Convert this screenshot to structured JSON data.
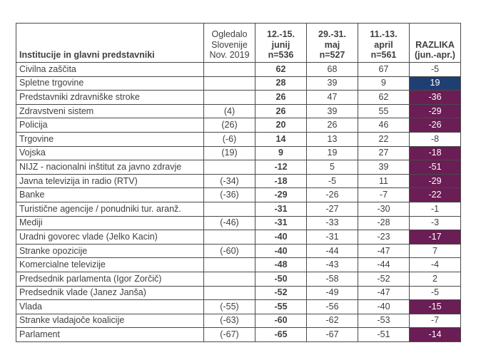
{
  "header": {
    "institution": "Institucije in glavni predstavniki",
    "reference": [
      "Ogledalo",
      "Slovenije",
      "Nov. 2019"
    ],
    "col_june": [
      "12.-15.",
      "junij",
      "n=536"
    ],
    "col_may": [
      "29.-31.",
      "maj",
      "n=527"
    ],
    "col_april": [
      "11.-13.",
      "april",
      "n=561"
    ],
    "col_diff": [
      "RAZLIKA",
      "(jun.-apr.)"
    ]
  },
  "colors": {
    "positive_highlight": "#1f3f73",
    "negative_highlight": "#6b1d55"
  },
  "rows": [
    {
      "name": "Civilna zaščita",
      "ref": "",
      "jun": "62",
      "maj": "68",
      "apr": "67",
      "diff": "-5",
      "hl": ""
    },
    {
      "name": "Spletne trgovine",
      "ref": "",
      "jun": "28",
      "maj": "39",
      "apr": "9",
      "diff": "19",
      "hl": "pos"
    },
    {
      "name": "Predstavniki zdravniške stroke",
      "ref": "",
      "jun": "26",
      "maj": "47",
      "apr": "62",
      "diff": "-36",
      "hl": "neg"
    },
    {
      "name": "Zdravstveni sistem",
      "ref": "(4)",
      "jun": "26",
      "maj": "39",
      "apr": "55",
      "diff": "-29",
      "hl": "neg"
    },
    {
      "name": "Policija",
      "ref": "(26)",
      "jun": "20",
      "maj": "26",
      "apr": "46",
      "diff": "-26",
      "hl": "neg"
    },
    {
      "name": "Trgovine",
      "ref": "(-6)",
      "jun": "14",
      "maj": "13",
      "apr": "22",
      "diff": "-8",
      "hl": ""
    },
    {
      "name": "Vojska",
      "ref": "(19)",
      "jun": "9",
      "maj": "19",
      "apr": "27",
      "diff": "-18",
      "hl": "neg"
    },
    {
      "name": "NIJZ - nacionalni inštitut za javno zdravje",
      "ref": "",
      "jun": "-12",
      "maj": "5",
      "apr": "39",
      "diff": "-51",
      "hl": "neg"
    },
    {
      "name": "Javna televizija in radio (RTV)",
      "ref": "(-34)",
      "jun": "-18",
      "maj": "-5",
      "apr": "11",
      "diff": "-29",
      "hl": "neg"
    },
    {
      "name": "Banke",
      "ref": "(-36)",
      "jun": "-29",
      "maj": "-26",
      "apr": "-7",
      "diff": "-22",
      "hl": "neg"
    },
    {
      "name": "Turistične agencije / ponudniki tur. aranž.",
      "ref": "",
      "jun": "-31",
      "maj": "-27",
      "apr": "-30",
      "diff": "-1",
      "hl": ""
    },
    {
      "name": "Mediji",
      "ref": "(-46)",
      "jun": "-31",
      "maj": "-33",
      "apr": "-28",
      "diff": "-3",
      "hl": ""
    },
    {
      "name": "Uradni govorec vlade (Jelko Kacin)",
      "ref": "",
      "jun": "-40",
      "maj": "-31",
      "apr": "-23",
      "diff": "-17",
      "hl": "neg"
    },
    {
      "name": "Stranke opozicije",
      "ref": "(-60)",
      "jun": "-40",
      "maj": "-44",
      "apr": "-47",
      "diff": "7",
      "hl": ""
    },
    {
      "name": "Komercialne televizije",
      "ref": "",
      "jun": "-48",
      "maj": "-43",
      "apr": "-44",
      "diff": "-4",
      "hl": ""
    },
    {
      "name": "Predsednik parlamenta (Igor Zorčič)",
      "ref": "",
      "jun": "-50",
      "maj": "-58",
      "apr": "-52",
      "diff": "2",
      "hl": ""
    },
    {
      "name": "Predsednik vlade (Janez Janša)",
      "ref": "",
      "jun": "-52",
      "maj": "-49",
      "apr": "-47",
      "diff": "-5",
      "hl": ""
    },
    {
      "name": "Vlada",
      "ref": "(-55)",
      "jun": "-55",
      "maj": "-56",
      "apr": "-40",
      "diff": "-15",
      "hl": "neg"
    },
    {
      "name": "Stranke vladajoče koalicije",
      "ref": "(-63)",
      "jun": "-60",
      "maj": "-62",
      "apr": "-53",
      "diff": "-7",
      "hl": ""
    },
    {
      "name": "Parlament",
      "ref": "(-67)",
      "jun": "-65",
      "maj": "-67",
      "apr": "-51",
      "diff": "-14",
      "hl": "neg"
    }
  ]
}
